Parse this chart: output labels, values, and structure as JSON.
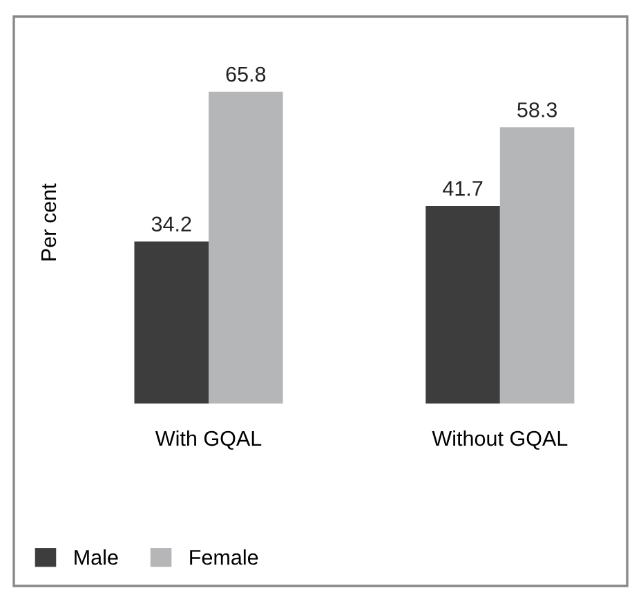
{
  "chart_data": {
    "type": "bar",
    "ylabel": "Per cent",
    "categories": [
      "With GQAL",
      "Without GQAL"
    ],
    "series": [
      {
        "name": "Male",
        "color": "#3d3d3d",
        "values": [
          34.2,
          41.7
        ]
      },
      {
        "name": "Female",
        "color": "#b4b6b8",
        "values": [
          65.8,
          58.3
        ]
      }
    ],
    "data_labels": true,
    "legend": "bottom left",
    "grid": false,
    "relative": false
  }
}
